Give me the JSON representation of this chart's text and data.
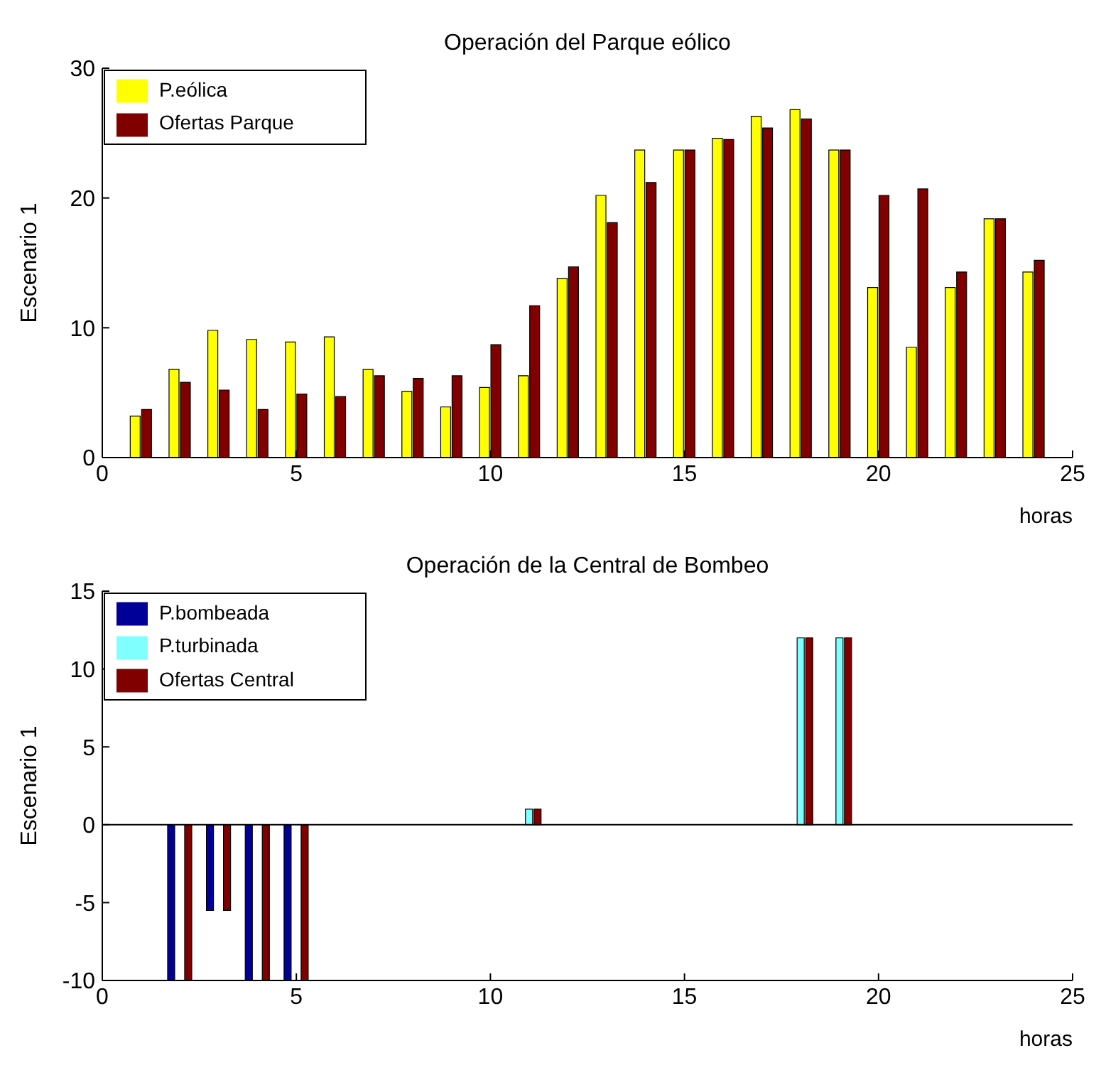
{
  "chart_data": [
    {
      "type": "bar",
      "title": "Operación del Parque eólico",
      "xlabel": "horas",
      "ylabel": "Escenario 1",
      "x": [
        1,
        2,
        3,
        4,
        5,
        6,
        7,
        8,
        9,
        10,
        11,
        12,
        13,
        14,
        15,
        16,
        17,
        18,
        19,
        20,
        21,
        22,
        23,
        24
      ],
      "series": [
        {
          "name": "P.eólica",
          "color": "#ffff00",
          "values": [
            3.2,
            6.8,
            9.8,
            9.1,
            8.9,
            9.3,
            6.8,
            5.1,
            3.9,
            5.4,
            6.3,
            13.8,
            20.2,
            23.7,
            23.7,
            24.6,
            26.3,
            26.8,
            23.7,
            13.1,
            8.5,
            13.1,
            18.4,
            14.3
          ]
        },
        {
          "name": "Ofertas Parque",
          "color": "#800000",
          "values": [
            3.7,
            5.8,
            5.2,
            3.7,
            4.9,
            4.7,
            6.3,
            6.1,
            6.3,
            8.7,
            11.7,
            14.7,
            18.1,
            21.2,
            23.7,
            24.5,
            25.4,
            26.1,
            23.7,
            20.2,
            20.7,
            14.3,
            18.4,
            15.2
          ]
        }
      ],
      "xlim": [
        0,
        25
      ],
      "xticks": [
        0,
        5,
        10,
        15,
        20,
        25
      ],
      "ylim": [
        0,
        30
      ],
      "yticks": [
        0,
        10,
        20,
        30
      ],
      "legend": "top left"
    },
    {
      "type": "bar",
      "title": "Operación de la Central de Bombeo",
      "xlabel": "horas",
      "ylabel": "Escenario 1",
      "x": [
        1,
        2,
        3,
        4,
        5,
        6,
        7,
        8,
        9,
        10,
        11,
        12,
        13,
        14,
        15,
        16,
        17,
        18,
        19,
        20,
        21,
        22,
        23,
        24
      ],
      "series": [
        {
          "name": "P.bombeada",
          "color": "#000099",
          "values": [
            0,
            -10,
            -5.5,
            -10,
            -10,
            0,
            0,
            0,
            0,
            0,
            0,
            0,
            0,
            0,
            0,
            0,
            0,
            0,
            0,
            0,
            0,
            0,
            0,
            0
          ]
        },
        {
          "name": "P.turbinada",
          "color": "#80ffff",
          "values": [
            0,
            0,
            0,
            0,
            0,
            0,
            0,
            0,
            0,
            0,
            1,
            0,
            0,
            0,
            0,
            0,
            0,
            12,
            12,
            0,
            0,
            0,
            0,
            0
          ]
        },
        {
          "name": "Ofertas Central",
          "color": "#800000",
          "values": [
            0,
            -10,
            -5.5,
            -10,
            -10,
            0,
            0,
            0,
            0,
            0,
            1,
            0,
            0,
            0,
            0,
            0,
            0,
            12,
            12,
            0,
            0,
            0,
            0,
            0
          ]
        }
      ],
      "xlim": [
        0,
        25
      ],
      "xticks": [
        0,
        5,
        10,
        15,
        20,
        25
      ],
      "ylim": [
        -10,
        15
      ],
      "yticks": [
        -10,
        -5,
        0,
        5,
        10,
        15
      ],
      "legend": "top left"
    }
  ]
}
